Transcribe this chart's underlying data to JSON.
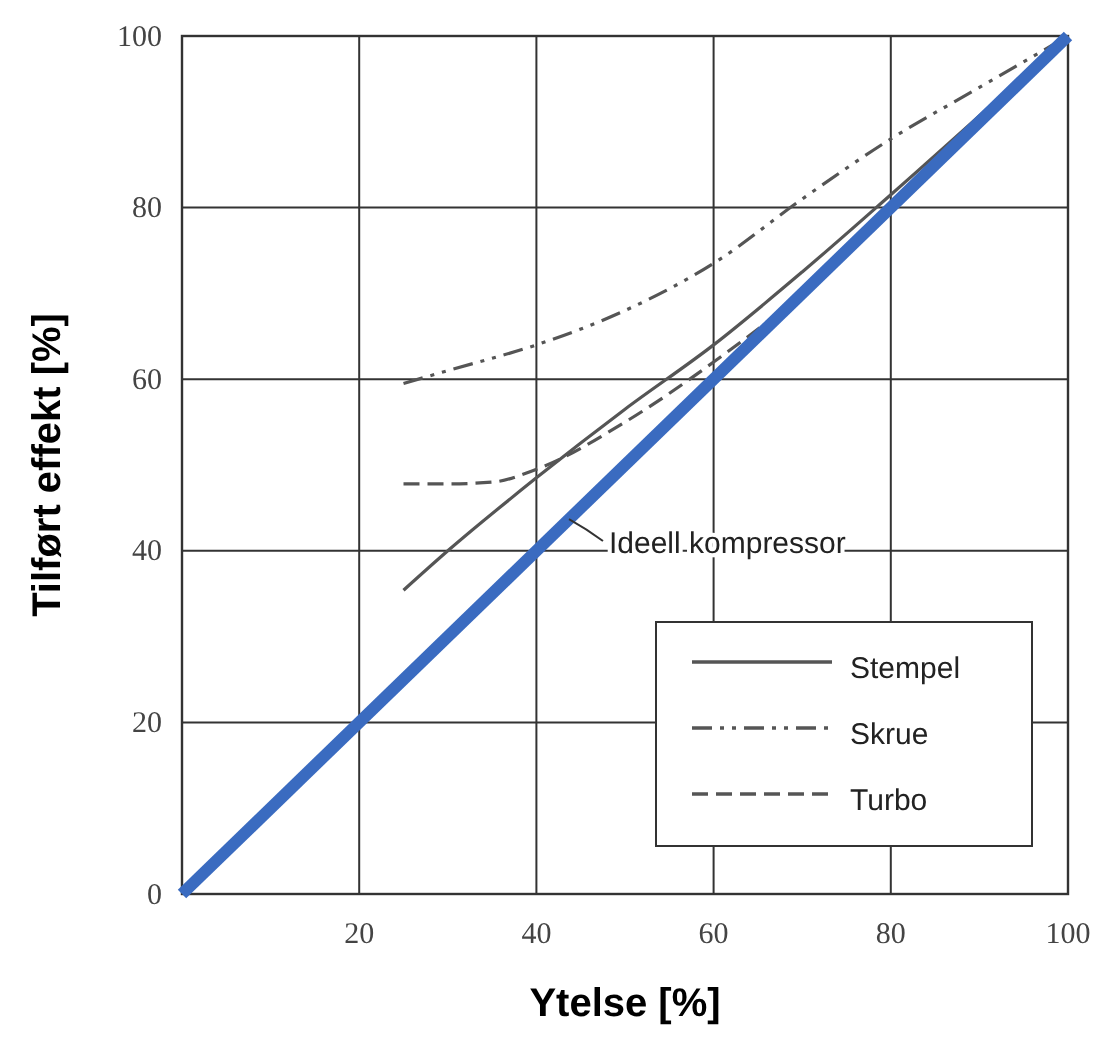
{
  "chart_data": {
    "type": "line",
    "xlabel": "Ytelse [%]",
    "ylabel": "Tilført effekt [%]",
    "xlim": [
      0,
      100
    ],
    "ylim": [
      0,
      100
    ],
    "xticks": [
      20,
      40,
      60,
      80,
      100
    ],
    "yticks": [
      0,
      20,
      40,
      60,
      80,
      100
    ],
    "grid": true,
    "legend": "bottom right",
    "series": [
      {
        "name": "Stempel",
        "color": "#555555",
        "line_style": "solid",
        "x": [
          25,
          30,
          40,
          50,
          60,
          70,
          80,
          90,
          100
        ],
        "values": [
          35.4,
          40,
          48.5,
          56.5,
          64,
          72.5,
          81.5,
          null,
          100
        ]
      },
      {
        "name": "Skrue",
        "color": "#555555",
        "line_style": "dotted",
        "x": [
          25,
          30,
          40,
          50,
          60,
          70,
          80,
          90,
          100
        ],
        "values": [
          59.5,
          61,
          64,
          68,
          73.5,
          81,
          88,
          94,
          100
        ]
      },
      {
        "name": "Turbo",
        "color": "#555555",
        "line_style": "dashed",
        "x": [
          25,
          30,
          35,
          40,
          50,
          60,
          70,
          80,
          90,
          100
        ],
        "values": [
          47.8,
          47.8,
          48,
          49.5,
          55,
          62,
          70,
          79.5,
          null,
          100
        ]
      },
      {
        "name": "Ideell kompressor",
        "color": "#3a6bc0",
        "line_style": "solid",
        "x": [
          0,
          100
        ],
        "values": [
          0,
          100
        ]
      }
    ]
  }
}
